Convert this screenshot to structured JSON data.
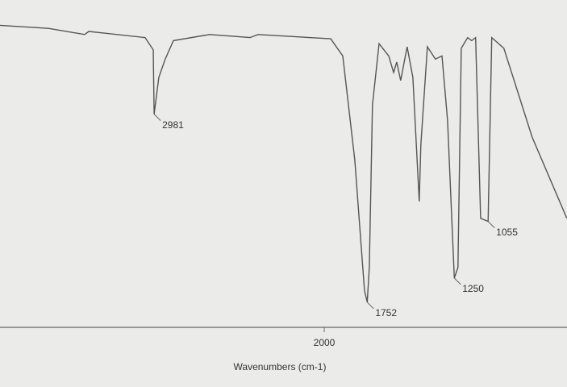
{
  "chart_data": {
    "type": "line",
    "x_label": "Wavenumbers (cm-1)",
    "xlim": [
      3870,
      600
    ],
    "ylim": [
      0,
      100
    ],
    "xticks": [
      2000
    ],
    "series": [
      {
        "color": "#555555",
        "x": [
          3870,
          3591,
          3382,
          3358,
          3033,
          2986,
          2981,
          2954,
          2917,
          2870,
          2661,
          2428,
          2382,
          1963,
          1893,
          1824,
          1768,
          1752,
          1740,
          1722,
          1684,
          1628,
          1600,
          1582,
          1559,
          1522,
          1489,
          1452,
          1443,
          1405,
          1359,
          1321,
          1289,
          1250,
          1229,
          1210,
          1173,
          1150,
          1127,
          1098,
          1055,
          1034,
          964,
          801,
          601
        ],
        "values": [
          97,
          96,
          94,
          95,
          93,
          89,
          68,
          80,
          86,
          92,
          94,
          93,
          94,
          92.6,
          87,
          53,
          10.5,
          6.6,
          18,
          71,
          91,
          87,
          81.6,
          85,
          79,
          90,
          80,
          39.5,
          58,
          90,
          86,
          87,
          66,
          14.5,
          18,
          89.5,
          93,
          92,
          93,
          34,
          33,
          93,
          89.5,
          60.5,
          34
        ]
      }
    ],
    "peaks": [
      2981,
      1752,
      1250,
      1055
    ]
  }
}
